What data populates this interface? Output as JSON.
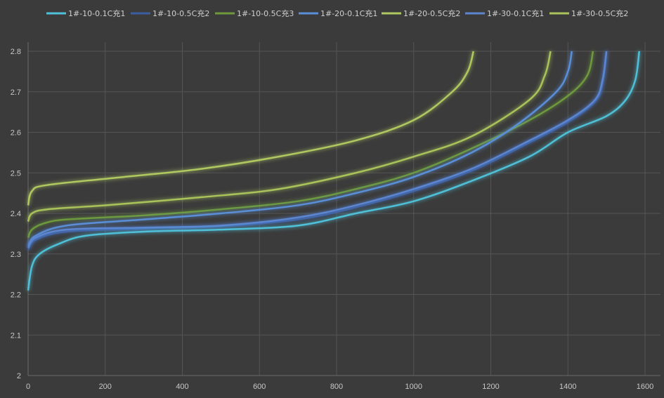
{
  "chart_data": {
    "type": "line",
    "title": "",
    "xlabel": "",
    "ylabel": "",
    "xlim": [
      0,
      1600
    ],
    "ylim": [
      2,
      2.8
    ],
    "xticks": [
      0,
      200,
      400,
      600,
      800,
      1000,
      1200,
      1400,
      1600
    ],
    "yticks": [
      2,
      2.1,
      2.2,
      2.3,
      2.4,
      2.5,
      2.6,
      2.7,
      2.8
    ],
    "grid": true,
    "legend_position": "top",
    "background": "#3b3b3b",
    "series": [
      {
        "name": "1#-10-0.1C充1",
        "color": "#4fc0d8",
        "x": [
          0,
          10,
          30,
          80,
          150,
          300,
          500,
          700,
          850,
          1000,
          1150,
          1300,
          1400,
          1500,
          1550,
          1575,
          1585
        ],
        "y": [
          2.21,
          2.27,
          2.3,
          2.325,
          2.345,
          2.355,
          2.36,
          2.37,
          2.4,
          2.43,
          2.48,
          2.54,
          2.6,
          2.64,
          2.68,
          2.73,
          2.8
        ]
      },
      {
        "name": "1#-10-0.5C充2",
        "color": "#3b5ea0",
        "x": [
          0,
          20,
          100,
          300,
          500,
          700,
          850,
          1000,
          1150,
          1280,
          1400,
          1470,
          1490,
          1500
        ],
        "y": [
          2.31,
          2.335,
          2.355,
          2.362,
          2.368,
          2.385,
          2.415,
          2.455,
          2.505,
          2.565,
          2.625,
          2.675,
          2.72,
          2.8
        ]
      },
      {
        "name": "1#-10-0.5C充3",
        "color": "#6e9a3c",
        "x": [
          0,
          10,
          40,
          100,
          300,
          500,
          700,
          850,
          1000,
          1150,
          1300,
          1400,
          1450,
          1465
        ],
        "y": [
          2.34,
          2.36,
          2.375,
          2.385,
          2.395,
          2.41,
          2.43,
          2.46,
          2.5,
          2.56,
          2.63,
          2.69,
          2.74,
          2.8
        ]
      },
      {
        "name": "1#-20-0.1C充1",
        "color": "#5a8fd8",
        "x": [
          0,
          20,
          100,
          300,
          500,
          700,
          850,
          1000,
          1150,
          1270,
          1370,
          1400,
          1410
        ],
        "y": [
          2.32,
          2.345,
          2.37,
          2.385,
          2.4,
          2.42,
          2.45,
          2.49,
          2.55,
          2.62,
          2.7,
          2.75,
          2.8
        ]
      },
      {
        "name": "1#-20-0.5C充2",
        "color": "#b0c860",
        "x": [
          0,
          10,
          50,
          250,
          450,
          650,
          850,
          1000,
          1100,
          1140,
          1155
        ],
        "y": [
          2.42,
          2.455,
          2.47,
          2.49,
          2.51,
          2.54,
          2.58,
          2.63,
          2.7,
          2.75,
          2.8
        ]
      },
      {
        "name": "1#-30-0.1C充1",
        "color": "#5c86d2",
        "x": [
          0,
          20,
          100,
          300,
          500,
          700,
          850,
          1000,
          1150,
          1280,
          1400,
          1470,
          1490,
          1500
        ],
        "y": [
          2.315,
          2.34,
          2.36,
          2.365,
          2.37,
          2.39,
          2.42,
          2.46,
          2.51,
          2.57,
          2.63,
          2.68,
          2.73,
          2.8
        ]
      },
      {
        "name": "1#-30-0.5C充2",
        "color": "#a9c35a",
        "x": [
          0,
          10,
          50,
          200,
          450,
          650,
          850,
          1000,
          1150,
          1300,
          1340,
          1355
        ],
        "y": [
          2.38,
          2.4,
          2.41,
          2.42,
          2.44,
          2.46,
          2.5,
          2.54,
          2.59,
          2.68,
          2.74,
          2.8
        ]
      }
    ]
  }
}
